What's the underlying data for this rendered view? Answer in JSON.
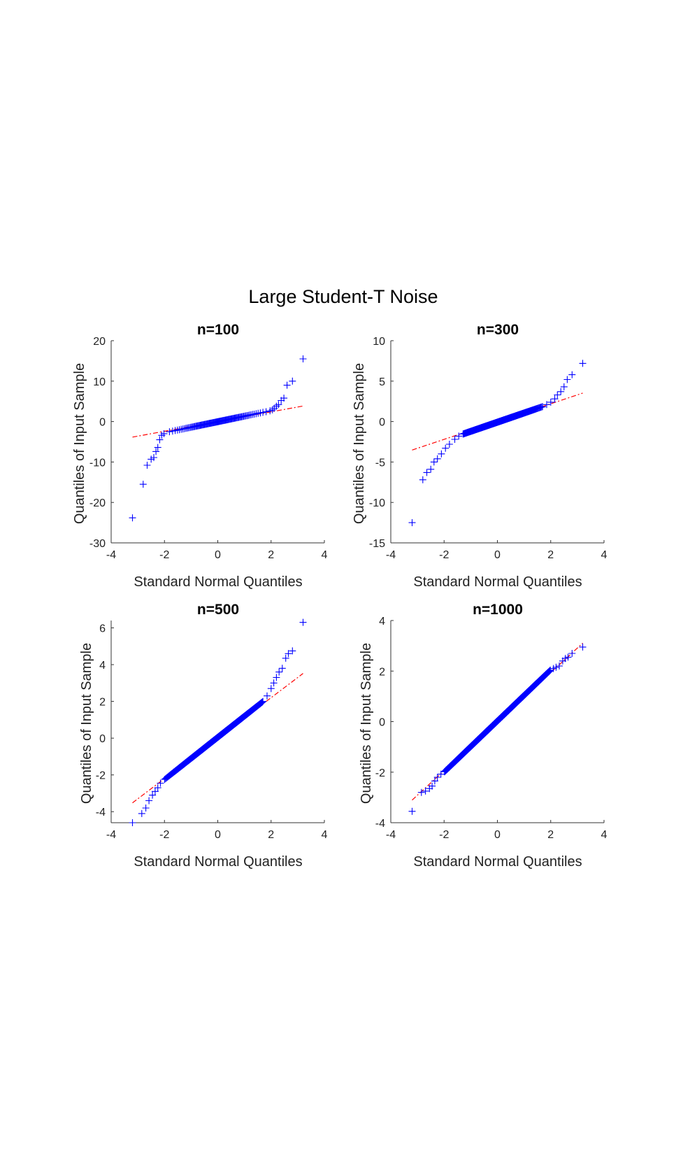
{
  "figure": {
    "title": "Large Student-T Noise",
    "colors": {
      "points": "#0000ff",
      "reference_line": "#ff0000",
      "axes": "#333333"
    }
  },
  "chart_data": [
    {
      "type": "scatter",
      "title": "n=100",
      "xlabel": "Standard Normal Quantiles",
      "ylabel": "Quantiles of Input Sample",
      "xlim": [
        -4,
        4
      ],
      "ylim": [
        -30,
        20
      ],
      "xticks": [
        "-4",
        "-2",
        "0",
        "2",
        "4"
      ],
      "yticks": [
        "-30",
        "-20",
        "-10",
        "0",
        "10",
        "20"
      ],
      "n": 100,
      "marker": "+",
      "reference_line": {
        "slope": 1.2,
        "intercept": 0.0,
        "x_range": [
          -3.2,
          3.2
        ],
        "style": "dash-dot"
      },
      "central": {
        "x_range": [
          -1.95,
          2.0
        ],
        "y_range": [
          -2.7,
          2.7
        ]
      },
      "tail_points": [
        [
          -3.2,
          -23.8
        ],
        [
          -2.8,
          -15.5
        ],
        [
          -2.65,
          -10.8
        ],
        [
          -2.5,
          -9.3
        ],
        [
          -2.4,
          -8.9
        ],
        [
          -2.32,
          -7.4
        ],
        [
          -2.25,
          -6.4
        ],
        [
          -2.18,
          -4.5
        ],
        [
          -2.1,
          -3.4
        ],
        [
          -2.02,
          -3.0
        ],
        [
          2.05,
          2.9
        ],
        [
          2.12,
          3.3
        ],
        [
          2.2,
          3.8
        ],
        [
          2.28,
          4.2
        ],
        [
          2.38,
          5.2
        ],
        [
          2.48,
          5.8
        ],
        [
          2.6,
          9.0
        ],
        [
          2.8,
          10.0
        ],
        [
          3.2,
          15.5
        ]
      ]
    },
    {
      "type": "scatter",
      "title": "n=300",
      "xlabel": "Standard Normal Quantiles",
      "ylabel": "Quantiles of Input Sample",
      "xlim": [
        -4,
        4
      ],
      "ylim": [
        -15,
        10
      ],
      "xticks": [
        "-4",
        "-2",
        "0",
        "2",
        "4"
      ],
      "yticks": [
        "-15",
        "-10",
        "-5",
        "0",
        "5",
        "10"
      ],
      "n": 300,
      "marker": "+",
      "reference_line": {
        "slope": 1.1,
        "intercept": 0.0,
        "x_range": [
          -3.2,
          3.2
        ],
        "style": "dash-dot"
      },
      "central": {
        "x_range": [
          -1.3,
          1.7
        ],
        "y_range": [
          -1.55,
          1.85
        ]
      },
      "tail_points": [
        [
          -3.2,
          -12.5
        ],
        [
          -2.8,
          -7.2
        ],
        [
          -2.65,
          -6.3
        ],
        [
          -2.5,
          -5.9
        ],
        [
          -2.38,
          -5.0
        ],
        [
          -2.25,
          -4.6
        ],
        [
          -2.1,
          -4.0
        ],
        [
          -1.95,
          -3.3
        ],
        [
          -1.8,
          -2.8
        ],
        [
          -1.6,
          -2.2
        ],
        [
          -1.45,
          -1.8
        ],
        [
          1.85,
          2.1
        ],
        [
          2.0,
          2.4
        ],
        [
          2.15,
          2.8
        ],
        [
          2.25,
          3.3
        ],
        [
          2.38,
          3.7
        ],
        [
          2.5,
          4.3
        ],
        [
          2.62,
          5.2
        ],
        [
          2.8,
          5.8
        ],
        [
          3.2,
          7.2
        ]
      ]
    },
    {
      "type": "scatter",
      "title": "n=500",
      "xlabel": "Standard Normal Quantiles",
      "ylabel": "Quantiles of Input Sample",
      "xlim": [
        -4,
        4
      ],
      "ylim": [
        -4.6,
        6.4
      ],
      "xticks": [
        "-4",
        "-2",
        "0",
        "2",
        "4"
      ],
      "yticks": [
        "-4",
        "-2",
        "0",
        "2",
        "4",
        "6"
      ],
      "n": 500,
      "marker": "+",
      "reference_line": {
        "slope": 1.1,
        "intercept": 0.0,
        "x_range": [
          -3.2,
          3.2
        ],
        "style": "dash-dot"
      },
      "central": {
        "x_range": [
          -2.0,
          1.7
        ],
        "y_range": [
          -2.25,
          2.0
        ]
      },
      "tail_points": [
        [
          -3.2,
          -4.6
        ],
        [
          -2.85,
          -4.1
        ],
        [
          -2.7,
          -3.8
        ],
        [
          -2.58,
          -3.4
        ],
        [
          -2.45,
          -3.1
        ],
        [
          -2.35,
          -2.9
        ],
        [
          -2.25,
          -2.7
        ],
        [
          -2.15,
          -2.45
        ],
        [
          1.85,
          2.3
        ],
        [
          2.0,
          2.7
        ],
        [
          2.1,
          3.0
        ],
        [
          2.2,
          3.3
        ],
        [
          2.3,
          3.6
        ],
        [
          2.42,
          3.8
        ],
        [
          2.55,
          4.35
        ],
        [
          2.65,
          4.6
        ],
        [
          2.8,
          4.75
        ],
        [
          3.2,
          6.3
        ]
      ]
    },
    {
      "type": "scatter",
      "title": "n=1000",
      "xlabel": "Standard Normal Quantiles",
      "ylabel": "Quantiles of Input Sample",
      "xlim": [
        -4,
        4
      ],
      "ylim": [
        -4,
        4
      ],
      "xticks": [
        "-4",
        "-2",
        "0",
        "2",
        "4"
      ],
      "yticks": [
        "-4",
        "-2",
        "0",
        "2",
        "4"
      ],
      "n": 1000,
      "marker": "+",
      "reference_line": {
        "slope": 0.97,
        "intercept": 0.0,
        "x_range": [
          -3.2,
          3.2
        ],
        "style": "dash-dot"
      },
      "central": {
        "x_range": [
          -2.0,
          2.0
        ],
        "y_range": [
          -2.0,
          2.05
        ]
      },
      "tail_points": [
        [
          -3.2,
          -3.55
        ],
        [
          -2.85,
          -2.8
        ],
        [
          -2.7,
          -2.75
        ],
        [
          -2.55,
          -2.65
        ],
        [
          -2.45,
          -2.55
        ],
        [
          -2.35,
          -2.35
        ],
        [
          -2.25,
          -2.2
        ],
        [
          -2.12,
          -2.08
        ],
        [
          2.1,
          2.1
        ],
        [
          2.2,
          2.15
        ],
        [
          2.32,
          2.2
        ],
        [
          2.45,
          2.4
        ],
        [
          2.55,
          2.5
        ],
        [
          2.65,
          2.55
        ],
        [
          2.8,
          2.7
        ],
        [
          3.2,
          2.95
        ]
      ]
    }
  ]
}
